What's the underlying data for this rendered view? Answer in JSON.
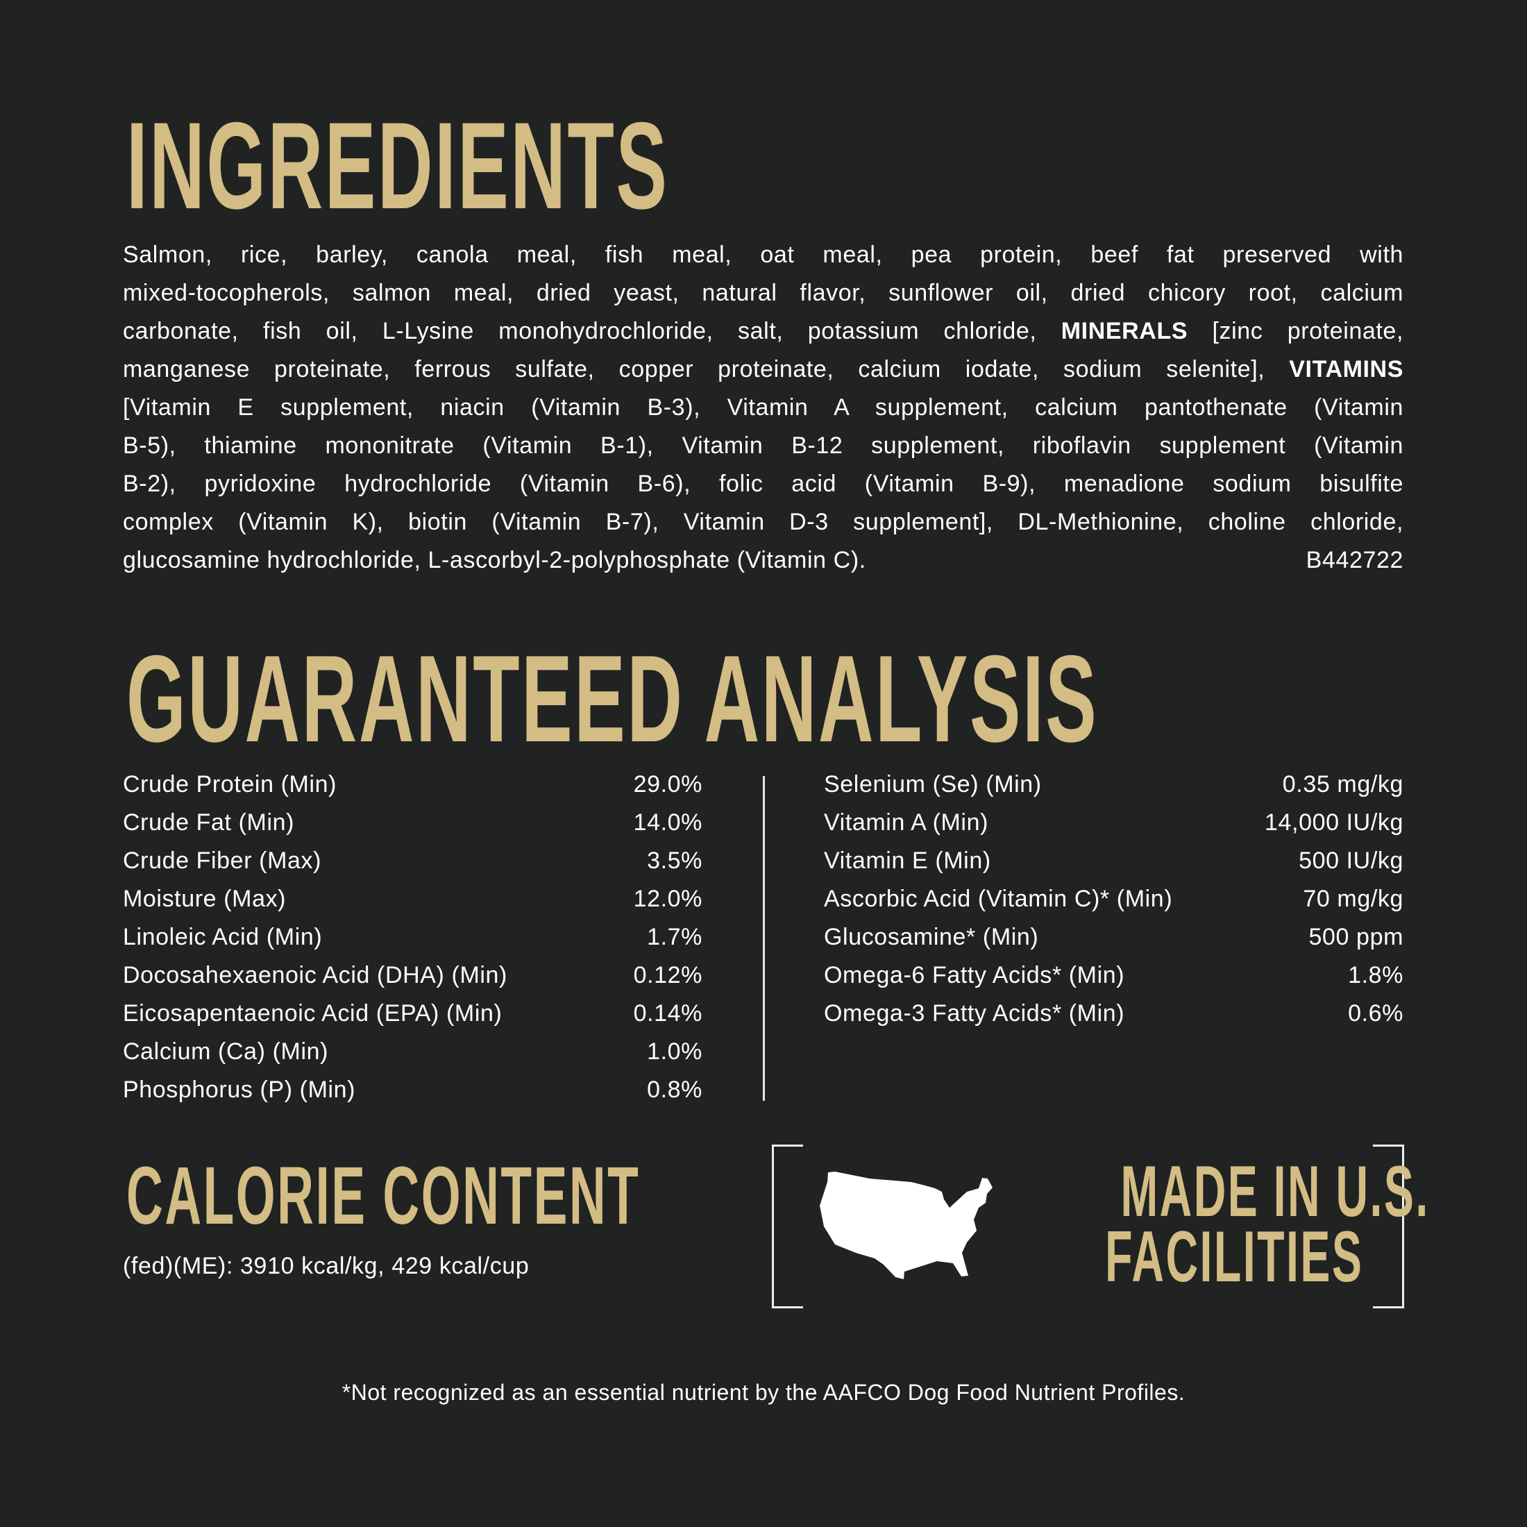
{
  "ingredients": {
    "title": "INGREDIENTS",
    "lines": [
      [
        "Salmon, rice, barley, canola meal, fish meal, oat meal, pea protein, beef fat preserved with"
      ],
      [
        "mixed-tocopherols, salmon meal, dried yeast, natural flavor, sunflower oil, dried chicory root, calcium"
      ],
      [
        "carbonate, fish oil, L-Lysine monohydrochloride, salt, potassium chloride, ",
        "MINERALS",
        " [zinc proteinate,"
      ],
      [
        "manganese proteinate, ferrous sulfate, copper proteinate, calcium iodate, sodium selenite], ",
        "VITAMINS"
      ],
      [
        "[Vitamin E supplement, niacin (Vitamin B-3), Vitamin A supplement, calcium pantothenate (Vitamin"
      ],
      [
        "B-5), thiamine mononitrate (Vitamin B-1), Vitamin B-12 supplement, riboflavin supplement (Vitamin"
      ],
      [
        "B-2), pyridoxine hydrochloride (Vitamin B-6), folic acid (Vitamin B-9), menadione sodium bisulfite"
      ],
      [
        "complex (Vitamin K), biotin (Vitamin B-7), Vitamin D-3 supplement], DL-Methionine, choline chloride,"
      ],
      [
        "glucosamine hydrochloride, L-ascorbyl-2-polyphosphate (Vitamin C)."
      ]
    ],
    "code": "B442722"
  },
  "analysis": {
    "title": "GUARANTEED ANALYSIS",
    "left": [
      {
        "name": "Crude Protein (Min)",
        "value": "29.0%"
      },
      {
        "name": "Crude Fat (Min)",
        "value": "14.0%"
      },
      {
        "name": "Crude Fiber (Max)",
        "value": "3.5%"
      },
      {
        "name": "Moisture (Max)",
        "value": "12.0%"
      },
      {
        "name": "Linoleic Acid (Min)",
        "value": "1.7%"
      },
      {
        "name": "Docosahexaenoic Acid (DHA) (Min)",
        "value": "0.12%"
      },
      {
        "name": "Eicosapentaenoic Acid (EPA) (Min)",
        "value": "0.14%"
      },
      {
        "name": "Calcium (Ca) (Min)",
        "value": "1.0%"
      },
      {
        "name": "Phosphorus (P) (Min)",
        "value": "0.8%"
      }
    ],
    "right": [
      {
        "name": "Selenium (Se) (Min)",
        "value": "0.35 mg/kg"
      },
      {
        "name": "Vitamin A (Min)",
        "value": "14,000 IU/kg"
      },
      {
        "name": "Vitamin E (Min)",
        "value": "500 IU/kg"
      },
      {
        "name": "Ascorbic Acid (Vitamin C)* (Min)",
        "value": "70 mg/kg"
      },
      {
        "name": "Glucosamine* (Min)",
        "value": "500 ppm"
      },
      {
        "name": "Omega-6 Fatty Acids* (Min)",
        "value": "1.8%"
      },
      {
        "name": "Omega-3 Fatty Acids* (Min)",
        "value": "0.6%"
      }
    ]
  },
  "calorie": {
    "title": "CALORIE CONTENT",
    "text": "(fed)(ME): 3910 kcal/kg, 429 kcal/cup"
  },
  "made_in": {
    "line1": "MADE IN U.S.",
    "line2": "FACILITIES",
    "icon": "usa-map-icon"
  },
  "footnote": "*Not recognized as an essential nutrient by the AAFCO Dog Food Nutrient Profiles.",
  "colors": {
    "background": "#212322",
    "gold": "#d3bd85",
    "text": "#ffffff"
  }
}
